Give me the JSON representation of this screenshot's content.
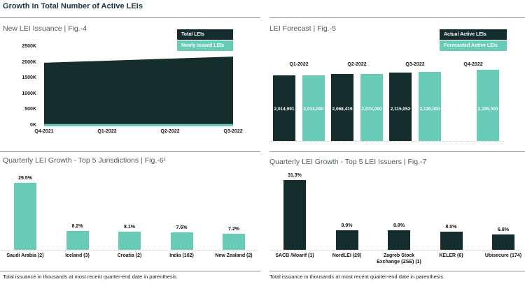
{
  "page_title": "Growth in Total Number of Active LEIs",
  "colors": {
    "dark": "#152E2D",
    "teal": "#68CBB8",
    "title_text": "#1E3440",
    "panel_title_text": "#4D5C63",
    "rule": "#8C8C8C"
  },
  "chart_data": [
    {
      "id": "fig4",
      "type": "area",
      "title": "New LEI Issuance | Fig.-4",
      "x": [
        "Q4-2021",
        "Q1-2022",
        "Q2-2022",
        "Q3-2022"
      ],
      "series": [
        {
          "name": "Total LEIs",
          "color": "dark",
          "values_thousands": [
            2015,
            2080,
            2145,
            2210
          ]
        },
        {
          "name": "Newly Issued LEIs",
          "color": "teal",
          "values_thousands": [
            70,
            70,
            70,
            70
          ]
        }
      ],
      "ylim_thousands": [
        0,
        2500
      ],
      "ytick_labels": [
        "0K",
        "500K",
        "1000K",
        "1500K",
        "2000K",
        "2500K"
      ],
      "legend_position": "top-right"
    },
    {
      "id": "fig5",
      "type": "bar",
      "title": "LEI Forecast | Fig.-5",
      "categories": [
        "Q1-2022",
        "Q2-2022",
        "Q3-2022",
        "Q4-2022"
      ],
      "series": [
        {
          "name": "Actual Active LEIs",
          "color": "dark",
          "values": [
            2014991,
            2068419,
            2115052,
            null
          ],
          "labels": [
            "2,014,991",
            "2,068,419",
            "2,115,052",
            null
          ]
        },
        {
          "name": "Forecasted Active LEIs",
          "color": "teal",
          "values": [
            2014000,
            2074000,
            2130000,
            2195000
          ],
          "labels": [
            "2,014,000",
            "2,074,000",
            "2,130,000",
            "2,195,000"
          ]
        }
      ],
      "legend_position": "top-right"
    },
    {
      "id": "fig6",
      "type": "bar",
      "title": "Quarterly LEI Growth - Top 5 Jurisdictions | Fig.-6¹",
      "categories": [
        "Saudi Arabia (2)",
        "Iceland (3)",
        "Croatia (2)",
        "India (102)",
        "New Zealand (2)"
      ],
      "values": [
        29.5,
        8.2,
        8.1,
        7.6,
        7.2
      ],
      "labels": [
        "29.5%",
        "8.2%",
        "8.1%",
        "7.6%",
        "7.2%"
      ],
      "bar_color": "teal",
      "footnote": "Total issuance in thousands at most recent quarter-end date in parenthesis"
    },
    {
      "id": "fig7",
      "type": "bar",
      "title": "Quarterly LEI Growth - Top 5 LEI Issuers | Fig.-7",
      "categories": [
        "SACB /Moarif (1)",
        "NordLEI (29)",
        "Zagreb Stock Exchange (ZSE) (1)",
        "KELER (6)",
        "Ubisecure (174)"
      ],
      "values": [
        31.3,
        8.9,
        8.8,
        8.0,
        6.8
      ],
      "labels": [
        "31.3%",
        "8.9%",
        "8.8%",
        "8.0%",
        "6.8%"
      ],
      "bar_color": "dark",
      "footnote": "Total issuance in thousands at most recent quarter-end date in parenthesis"
    }
  ]
}
